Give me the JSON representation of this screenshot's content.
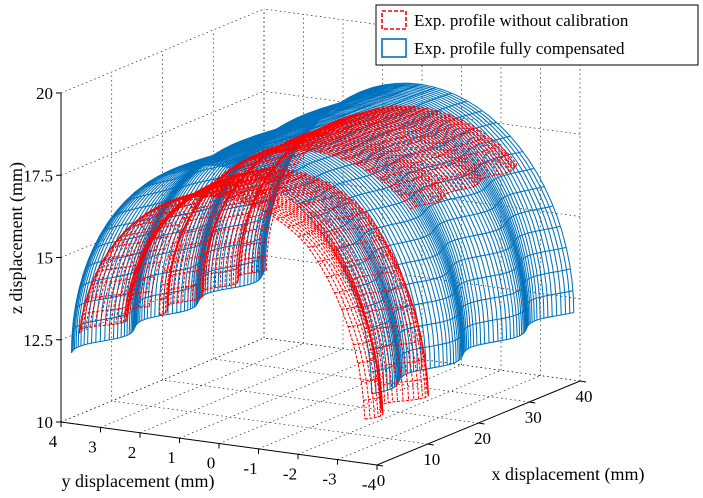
{
  "chart_data": {
    "type": "surface3d",
    "series": [
      {
        "name": "Exp. profile without calibration",
        "color": "#ff0000",
        "line_style": "dashed"
      },
      {
        "name": "Exp. profile fully compensated",
        "color": "#0072bd",
        "line_style": "solid"
      }
    ],
    "legend": {
      "position": "top-right",
      "entries": [
        "Exp. profile without calibration",
        "Exp. profile fully compensated"
      ]
    },
    "xlabel": "x displacement (mm)",
    "ylabel": "y displacement (mm)",
    "zlabel": "z displacement (mm)",
    "xlim": [
      0,
      40
    ],
    "ylim": [
      -4,
      4
    ],
    "zlim": [
      10,
      20
    ],
    "x_ticks": [
      "0",
      "10",
      "20",
      "30",
      "40"
    ],
    "y_ticks": [
      "4",
      "3",
      "2",
      "1",
      "0",
      "-1",
      "-2",
      "-3",
      "-4"
    ],
    "z_ticks": [
      "10",
      "12.5",
      "15",
      "17.5",
      "20"
    ],
    "grid": true
  }
}
